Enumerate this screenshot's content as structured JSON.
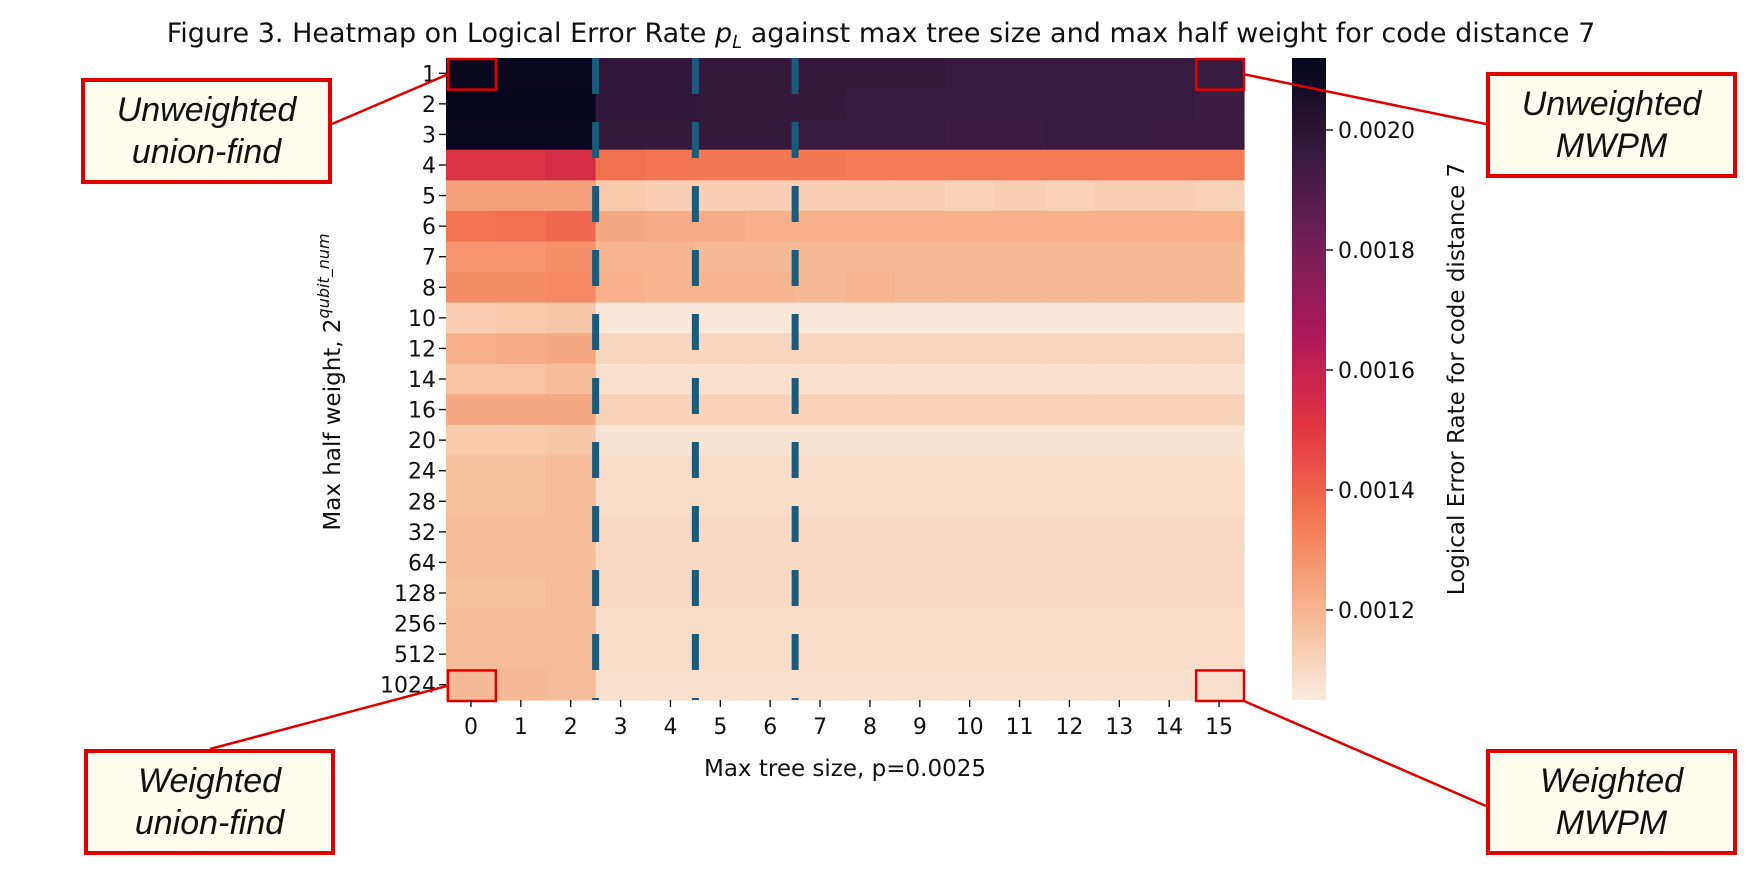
{
  "chart_data": {
    "type": "heatmap",
    "title_text": "Figure 3. Heatmap on Logical Error Rate ",
    "title_symbol": "p",
    "title_subscript": "L",
    "title_rest": " against max tree size and max half weight for code distance 7",
    "xlabel": "Max tree size, p=0.0025",
    "ylabel_text": "Max half weight, 2",
    "ylabel_sup": "qubit_num",
    "colorbar_label": "Logical Error Rate for code distance 7",
    "colorbar_ticks": [
      "0.0012",
      "0.0014",
      "0.0016",
      "0.0018",
      "0.0020"
    ],
    "colorbar_tick_values": [
      0.0012,
      0.0014,
      0.0016,
      0.0018,
      0.002
    ],
    "color_range": [
      0.00105,
      0.00212
    ],
    "colormap": [
      "#faebdd",
      "#f6b48e",
      "#f37651",
      "#e13342",
      "#ad1759",
      "#701f57",
      "#35193e",
      "#03051a"
    ],
    "x_categories": [
      "0",
      "1",
      "2",
      "3",
      "4",
      "5",
      "6",
      "7",
      "8",
      "9",
      "10",
      "11",
      "12",
      "13",
      "14",
      "15"
    ],
    "y_categories": [
      "1",
      "2",
      "3",
      "4",
      "5",
      "6",
      "7",
      "8",
      "10",
      "12",
      "14",
      "16",
      "20",
      "24",
      "28",
      "32",
      "64",
      "128",
      "256",
      "512",
      "1024"
    ],
    "values": [
      [
        0.0021,
        0.0021,
        0.0021,
        0.00198,
        0.00198,
        0.00197,
        0.00197,
        0.00197,
        0.00197,
        0.00197,
        0.00196,
        0.00196,
        0.00196,
        0.00196,
        0.00196,
        0.00196
      ],
      [
        0.00211,
        0.00211,
        0.00211,
        0.00198,
        0.00198,
        0.00197,
        0.00197,
        0.00197,
        0.00196,
        0.00196,
        0.00196,
        0.00196,
        0.00196,
        0.00196,
        0.00196,
        0.00195
      ],
      [
        0.0021,
        0.0021,
        0.0021,
        0.00197,
        0.00197,
        0.00197,
        0.00197,
        0.00196,
        0.00196,
        0.00196,
        0.00195,
        0.00195,
        0.00196,
        0.00196,
        0.00195,
        0.00195
      ],
      [
        0.00152,
        0.00152,
        0.00154,
        0.00137,
        0.00136,
        0.00135,
        0.00135,
        0.00135,
        0.00134,
        0.00134,
        0.00134,
        0.00134,
        0.00134,
        0.00134,
        0.00134,
        0.00134
      ],
      [
        0.00125,
        0.00125,
        0.00125,
        0.00114,
        0.00113,
        0.00113,
        0.00113,
        0.00113,
        0.00113,
        0.00113,
        0.00112,
        0.00113,
        0.00112,
        0.00113,
        0.00113,
        0.00112
      ],
      [
        0.00136,
        0.00137,
        0.00139,
        0.00123,
        0.00122,
        0.00122,
        0.00121,
        0.00121,
        0.00121,
        0.00121,
        0.00121,
        0.00121,
        0.00121,
        0.00121,
        0.00121,
        0.00121
      ],
      [
        0.00128,
        0.00128,
        0.00129,
        0.0012,
        0.0012,
        0.00119,
        0.00119,
        0.00119,
        0.00119,
        0.00119,
        0.00119,
        0.00119,
        0.00119,
        0.00119,
        0.00119,
        0.00119
      ],
      [
        0.0013,
        0.0013,
        0.00131,
        0.00121,
        0.0012,
        0.0012,
        0.0012,
        0.00119,
        0.0012,
        0.00119,
        0.00119,
        0.00119,
        0.00119,
        0.00119,
        0.00119,
        0.00119
      ],
      [
        0.00113,
        0.00114,
        0.00115,
        0.00106,
        0.00106,
        0.00106,
        0.00106,
        0.00106,
        0.00106,
        0.00106,
        0.00106,
        0.00106,
        0.00106,
        0.00106,
        0.00106,
        0.00106
      ],
      [
        0.00121,
        0.00122,
        0.00123,
        0.00111,
        0.00111,
        0.00111,
        0.00111,
        0.00111,
        0.00111,
        0.00111,
        0.00111,
        0.00111,
        0.00111,
        0.00111,
        0.00111,
        0.00111
      ],
      [
        0.00116,
        0.00116,
        0.00118,
        0.00108,
        0.00108,
        0.00108,
        0.00108,
        0.00108,
        0.00108,
        0.00108,
        0.00108,
        0.00108,
        0.00108,
        0.00108,
        0.00108,
        0.00108
      ],
      [
        0.00123,
        0.00123,
        0.00123,
        0.00112,
        0.00112,
        0.00112,
        0.00112,
        0.00112,
        0.00112,
        0.00112,
        0.00112,
        0.00112,
        0.00112,
        0.00112,
        0.00112,
        0.00112
      ],
      [
        0.00114,
        0.00114,
        0.00115,
        0.00107,
        0.00107,
        0.00107,
        0.00107,
        0.00107,
        0.00107,
        0.00107,
        0.00107,
        0.00107,
        0.00107,
        0.00107,
        0.00107,
        0.00107
      ],
      [
        0.00117,
        0.00117,
        0.00118,
        0.00109,
        0.00109,
        0.00109,
        0.00109,
        0.00109,
        0.00109,
        0.00109,
        0.00109,
        0.00109,
        0.00109,
        0.00109,
        0.00109,
        0.00109
      ],
      [
        0.00117,
        0.00117,
        0.00118,
        0.00109,
        0.00109,
        0.00109,
        0.00109,
        0.00109,
        0.00109,
        0.00109,
        0.00109,
        0.00109,
        0.00109,
        0.00109,
        0.00109,
        0.00109
      ],
      [
        0.00118,
        0.00118,
        0.00118,
        0.0011,
        0.0011,
        0.0011,
        0.0011,
        0.0011,
        0.0011,
        0.0011,
        0.0011,
        0.0011,
        0.0011,
        0.0011,
        0.0011,
        0.0011
      ],
      [
        0.00118,
        0.00118,
        0.00118,
        0.0011,
        0.0011,
        0.0011,
        0.0011,
        0.0011,
        0.0011,
        0.0011,
        0.0011,
        0.0011,
        0.0011,
        0.0011,
        0.0011,
        0.0011
      ],
      [
        0.00117,
        0.00117,
        0.00118,
        0.0011,
        0.0011,
        0.0011,
        0.0011,
        0.0011,
        0.0011,
        0.0011,
        0.0011,
        0.0011,
        0.0011,
        0.0011,
        0.0011,
        0.0011
      ],
      [
        0.00118,
        0.00118,
        0.00118,
        0.00109,
        0.00109,
        0.00109,
        0.00109,
        0.00109,
        0.00109,
        0.00109,
        0.00109,
        0.00109,
        0.00109,
        0.00109,
        0.00109,
        0.00109
      ],
      [
        0.00118,
        0.00118,
        0.00118,
        0.00109,
        0.00109,
        0.00109,
        0.00109,
        0.00109,
        0.00109,
        0.00109,
        0.00109,
        0.00109,
        0.00109,
        0.00109,
        0.00109,
        0.00109
      ],
      [
        0.00119,
        0.00119,
        0.00118,
        0.00108,
        0.00108,
        0.00108,
        0.00108,
        0.00108,
        0.00108,
        0.00108,
        0.00108,
        0.00108,
        0.00108,
        0.00108,
        0.00108,
        0.00108
      ]
    ],
    "divider_after_x": [
      "2",
      "4",
      "6"
    ],
    "divider_color": "#1a5a7a",
    "highlight_color": "#e00000",
    "highlighted_cells": [
      [
        "0",
        "1"
      ],
      [
        "15",
        "1"
      ],
      [
        "0",
        "1024"
      ],
      [
        "15",
        "1024"
      ]
    ]
  },
  "callouts": {
    "unweighted_uf": [
      "Unweighted",
      "union-find"
    ],
    "unweighted_mwpm": [
      "Unweighted",
      "MWPM"
    ],
    "weighted_uf": [
      "Weighted",
      "union-find"
    ],
    "weighted_mwpm": [
      "Weighted",
      "MWPM"
    ]
  }
}
